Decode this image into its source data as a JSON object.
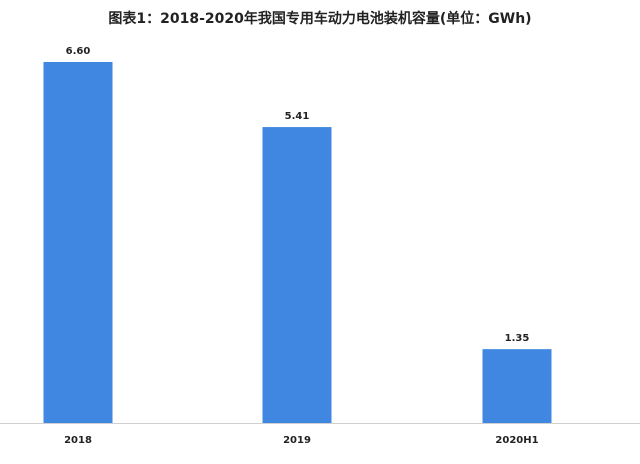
{
  "chart_data": {
    "type": "bar",
    "title": "图表1：2018-2020年我国专用车动力电池装机容量(单位：GWh)",
    "categories": [
      "2018",
      "2019",
      "2020H1"
    ],
    "values": [
      6.6,
      5.41,
      1.35
    ],
    "value_labels": [
      "6.60",
      "5.41",
      "1.35"
    ],
    "color": "#3f87e0"
  }
}
